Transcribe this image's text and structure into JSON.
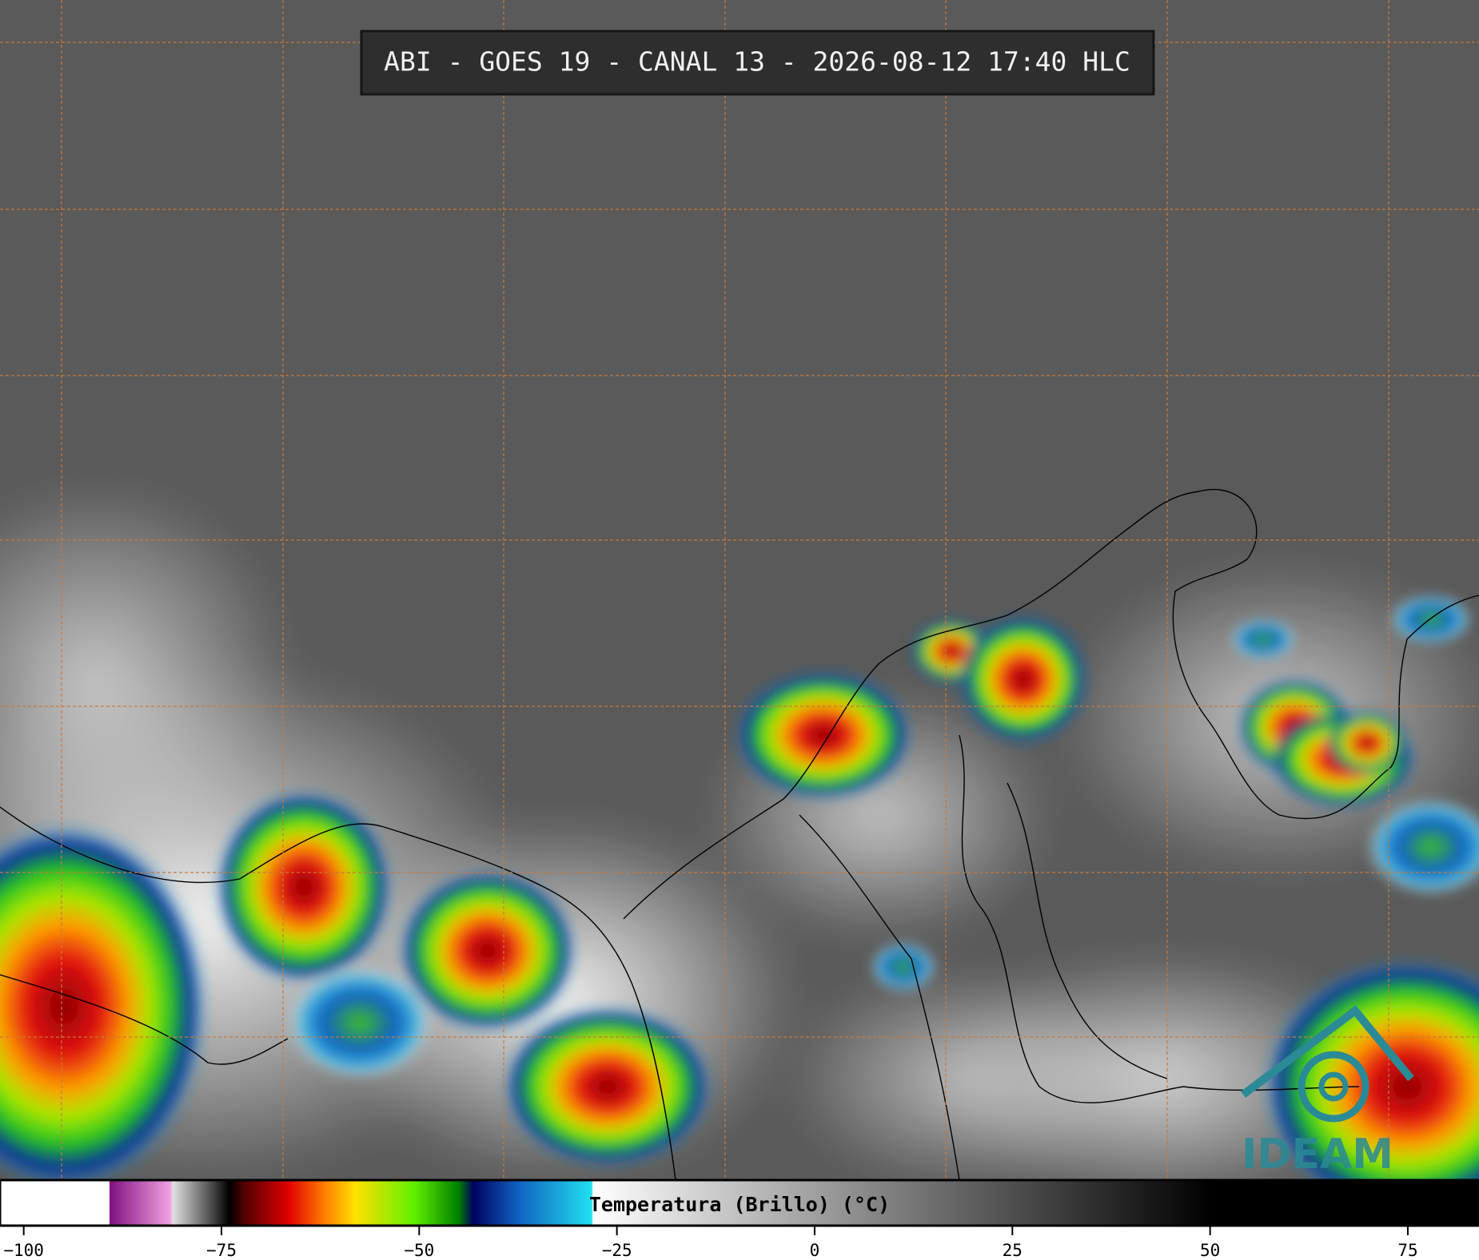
{
  "header": {
    "title": "ABI - GOES 19 - CANAL 13 - 2026-08-12 17:40 HLC"
  },
  "colorbar": {
    "label": "Temperatura (Brillo) (°C)",
    "xlim": [
      -103,
      84
    ],
    "ticks": [
      {
        "value": -100,
        "label": "−100"
      },
      {
        "value": -75,
        "label": "−75"
      },
      {
        "value": -50,
        "label": "−50"
      },
      {
        "value": -25,
        "label": "−25"
      },
      0,
      25,
      50,
      75
    ]
  },
  "logo": {
    "text": "IDEAM"
  }
}
